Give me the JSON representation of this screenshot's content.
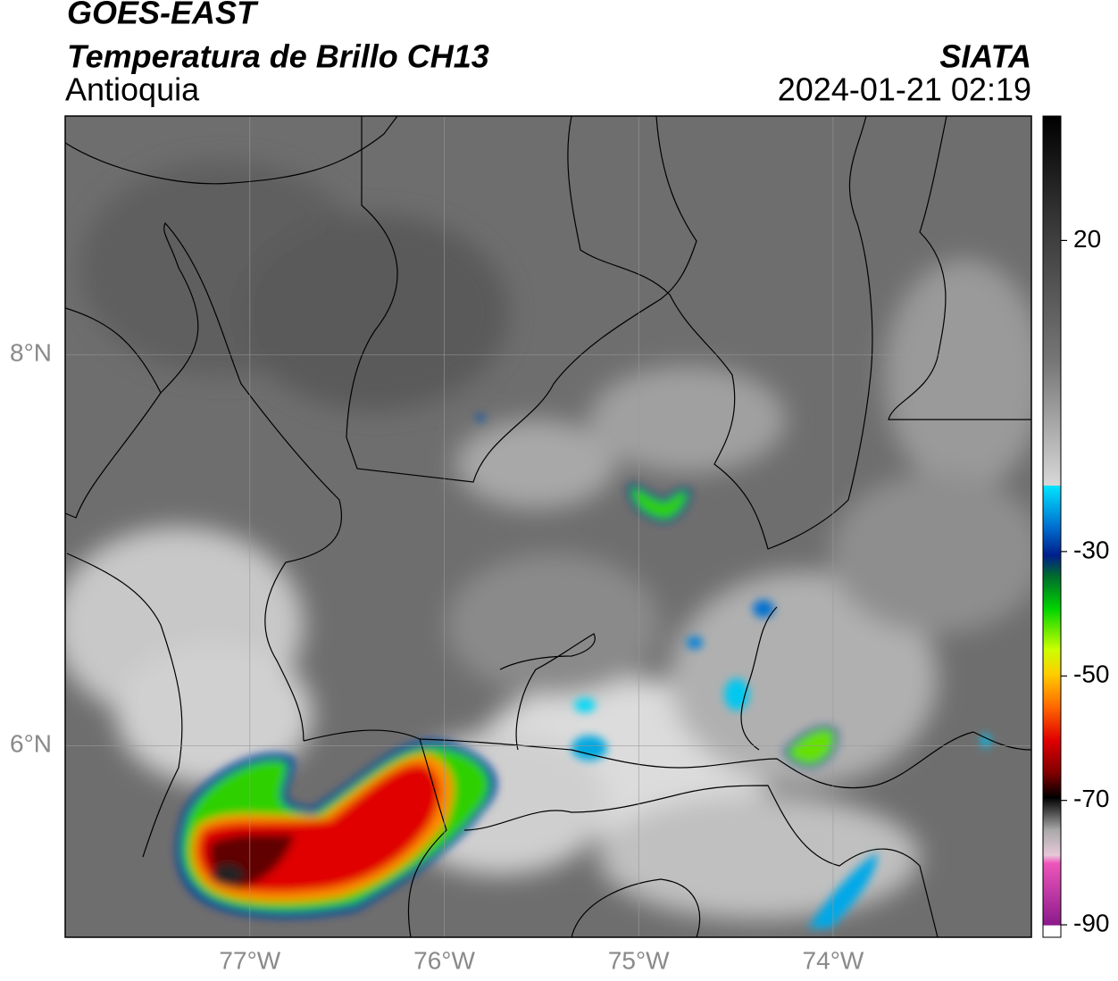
{
  "header": {
    "title": "GOES-EAST",
    "subtitle": "Temperatura de Brillo CH13",
    "region": "Antioquia",
    "agency": "SIATA",
    "timestamp": "2024-01-21 02:19"
  },
  "map": {
    "lonlim": [
      -77.95,
      -72.98
    ],
    "latlim": [
      5.02,
      9.22
    ],
    "lonticks": [
      {
        "value": -77,
        "label": "77°W"
      },
      {
        "value": -76,
        "label": "76°W"
      },
      {
        "value": -75,
        "label": "75°W"
      },
      {
        "value": -74,
        "label": "74°W"
      }
    ],
    "latticks": [
      {
        "value": 6,
        "label": "6°N"
      },
      {
        "value": 8,
        "label": "8°N"
      }
    ],
    "grid": true
  },
  "colorbar": {
    "lim": [
      -92,
      40
    ],
    "ticks": [
      20,
      -30,
      -50,
      -70,
      -90
    ]
  }
}
